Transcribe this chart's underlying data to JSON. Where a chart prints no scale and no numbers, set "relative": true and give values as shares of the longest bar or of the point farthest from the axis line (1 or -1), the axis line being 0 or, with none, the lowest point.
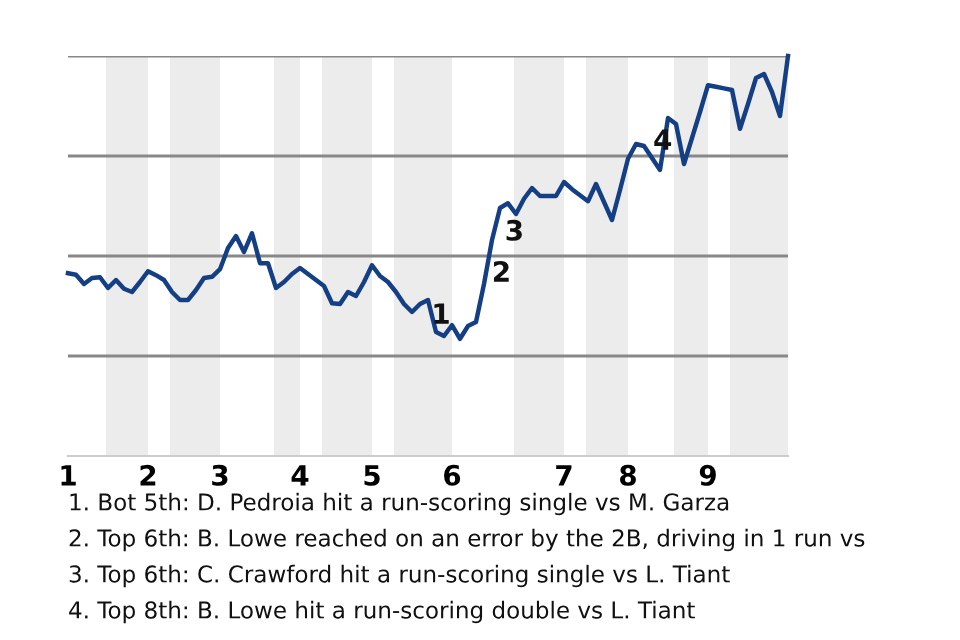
{
  "chart_data": {
    "type": "line",
    "relative": true,
    "categories": [
      "1",
      null,
      null,
      null,
      null,
      null,
      null,
      null,
      null,
      null,
      "2",
      null,
      null,
      null,
      null,
      null,
      null,
      null,
      null,
      "3",
      null,
      null,
      null,
      null,
      null,
      null,
      null,
      null,
      null,
      "4",
      null,
      null,
      null,
      null,
      null,
      null,
      null,
      null,
      "5",
      null,
      null,
      null,
      null,
      null,
      null,
      null,
      null,
      null,
      "6",
      null,
      null,
      null,
      null,
      null,
      null,
      null,
      null,
      null,
      null,
      null,
      null,
      null,
      "7",
      null,
      null,
      null,
      null,
      null,
      null,
      null,
      "8",
      null,
      null,
      null,
      null,
      null,
      null,
      null,
      null,
      null,
      "9",
      null,
      null,
      null,
      null,
      null,
      null,
      null,
      null,
      null,
      null
    ],
    "legend": false,
    "marker": "none",
    "line_style": "solid",
    "ref_lines": [
      {
        "axis": "y",
        "value": 1,
        "color": "#888888"
      },
      {
        "axis": "y",
        "value": 0.75,
        "color": "#888888"
      },
      {
        "axis": "y",
        "value": 0.5,
        "color": "#888888"
      },
      {
        "axis": "y",
        "value": 0.25,
        "color": "#888888"
      }
    ],
    "series": [
      {
        "color": "#153f85",
        "values": [
          0.457,
          0.453,
          0.43,
          0.445,
          0.447,
          0.42,
          0.44,
          0.418,
          0.41,
          0.435,
          0.462,
          0.452,
          0.44,
          0.41,
          0.39,
          0.39,
          0.415,
          0.445,
          0.448,
          0.467,
          0.52,
          0.55,
          0.51,
          0.557,
          0.482,
          0.482,
          0.42,
          0.435,
          0.455,
          0.47,
          0.455,
          0.44,
          0.425,
          0.382,
          0.38,
          0.41,
          0.4,
          0.435,
          0.477,
          0.45,
          0.435,
          0.41,
          0.38,
          0.36,
          0.38,
          0.39,
          0.31,
          0.3,
          0.327,
          0.293,
          0.325,
          0.335,
          0.43,
          0.54,
          0.62,
          0.632,
          0.605,
          0.643,
          0.67,
          0.65,
          0.65,
          0.65,
          0.685,
          0.667,
          0.652,
          0.637,
          0.68,
          0.635,
          0.59,
          0.665,
          0.743,
          0.78,
          0.775,
          0.745,
          0.715,
          0.845,
          0.83,
          0.73,
          0.795,
          0.86,
          0.927,
          0.923,
          0.919,
          0.915,
          0.818,
          0.88,
          0.945,
          0.955,
          0.91,
          0.85,
          1.0
        ]
      }
    ],
    "annotations": [
      "1",
      "2",
      "3",
      "4",
      "1. Bot 5th: D. Pedroia hit a run-scoring single vs M. Garza",
      "2. Top 6th: B. Lowe reached on an error by the 2B, driving in 1 run vs",
      "3. Top 6th: C. Crawford hit a run-scoring single vs L. Tiant",
      "4. Top 8th: B. Lowe hit a run-scoring double vs L. Tiant"
    ]
  }
}
